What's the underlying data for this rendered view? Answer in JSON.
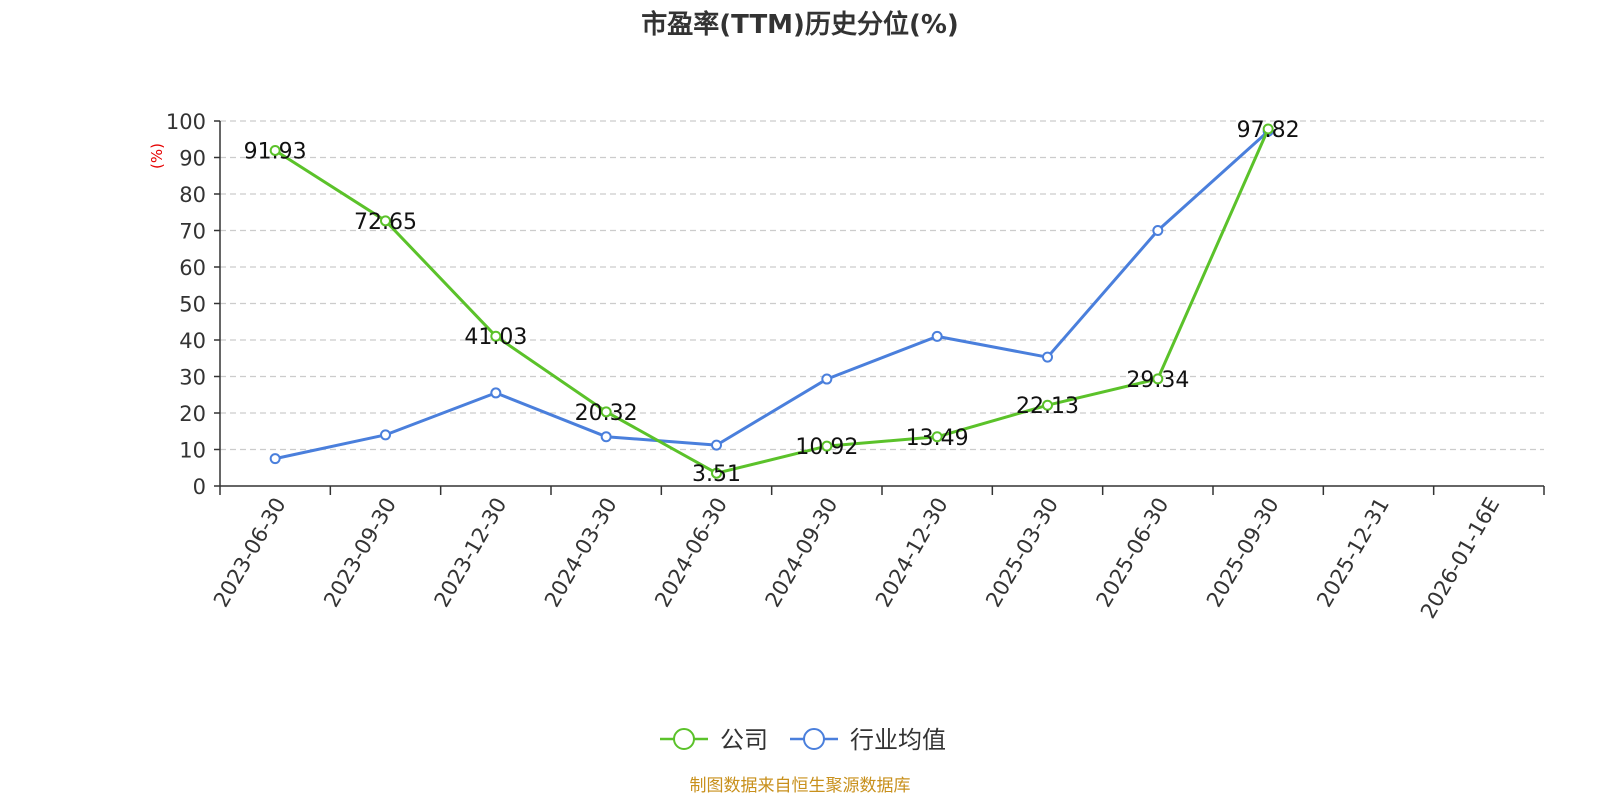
{
  "chart_data": {
    "type": "line",
    "title": "市盈率(TTM)历史分位(%)",
    "ylabel": "(%)",
    "ylim": [
      0,
      100
    ],
    "y_ticks": [
      0,
      10,
      20,
      30,
      40,
      50,
      60,
      70,
      80,
      90,
      100
    ],
    "grid": true,
    "legend_position": "bottom",
    "categories": [
      "2023-06-30",
      "2023-09-30",
      "2023-12-30",
      "2024-03-30",
      "2024-06-30",
      "2024-09-30",
      "2024-12-30",
      "2025-03-30",
      "2025-06-30",
      "2025-09-30",
      "2025-12-31",
      "2026-01-16E"
    ],
    "series": [
      {
        "name": "公司",
        "color": "#5bc22a",
        "values": [
          91.93,
          72.65,
          41.03,
          20.32,
          3.51,
          10.92,
          13.49,
          22.13,
          29.34,
          97.82,
          null,
          null
        ],
        "labels": [
          "91.93",
          "72.65",
          "41.03",
          "20.32",
          "3.51",
          "10.92",
          "13.49",
          "22.13",
          "29.34",
          "97.82",
          "",
          ""
        ]
      },
      {
        "name": "行业均值",
        "color": "#4a7fdc",
        "values": [
          7.5,
          14.0,
          25.5,
          13.5,
          11.2,
          29.3,
          41.0,
          35.3,
          70.0,
          97.2,
          null,
          null
        ]
      }
    ],
    "source": "制图数据来自恒生聚源数据库"
  }
}
